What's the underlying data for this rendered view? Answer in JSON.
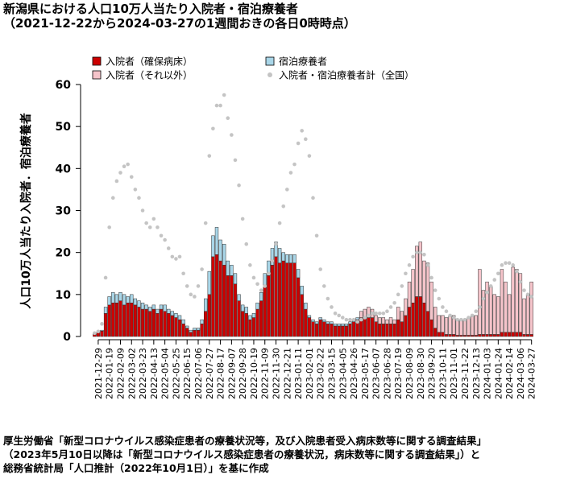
{
  "chart_data": {
    "type": "bar",
    "stacked": true,
    "title": [
      "新潟県における人口10万人当たり入院者・宿泊療養者",
      "（2021-12-22から2024-03-27の1週間おきの各日0時時点）"
    ],
    "ylabel": "人口10万人当たり入院者．宿泊療養者",
    "notes": [
      "厚生労働省「新型コロナウイルス感染症患者の療養状況等，及び入院患者受入病床数等に関する調査結果」",
      "（2023年5月10日以降は「新型コロナウイルス感染症患者の療養状況，病床数等に関する調査結果」）と",
      "総務省統計局「人口推計（2022年10月1日）」を基に作成"
    ],
    "categories": [
      null,
      "2021-12-29",
      null,
      null,
      "2022-01-19",
      null,
      null,
      "2022-02-09",
      null,
      null,
      "2022-03-02",
      null,
      null,
      "2022-03-23",
      null,
      null,
      "2022-04-13",
      null,
      null,
      "2022-05-04",
      null,
      null,
      "2022-05-25",
      null,
      null,
      "2022-06-15",
      null,
      null,
      "2022-07-06",
      null,
      null,
      "2022-07-27",
      null,
      null,
      "2022-08-17",
      null,
      null,
      "2022-09-07",
      null,
      null,
      "2022-09-28",
      null,
      null,
      "2022-10-19",
      null,
      null,
      "2022-11-09",
      null,
      null,
      "2022-11-30",
      null,
      null,
      "2022-12-21",
      null,
      null,
      "2023-01-11",
      null,
      null,
      "2023-02-01",
      null,
      null,
      "2023-02-22",
      null,
      null,
      "2023-03-15",
      null,
      null,
      "2023-04-05",
      null,
      null,
      "2023-04-26",
      null,
      null,
      "2023-05-17",
      null,
      null,
      "2023-06-07",
      null,
      null,
      "2023-06-28",
      null,
      null,
      "2023-07-19",
      null,
      null,
      "2023-08-09",
      null,
      null,
      "2023-08-30",
      null,
      null,
      "2023-09-20",
      null,
      null,
      "2023-10-11",
      null,
      null,
      "2023-11-01",
      null,
      null,
      "2023-11-22",
      null,
      null,
      "2023-12-13",
      null,
      null,
      "2024-01-03",
      null,
      null,
      "2024-01-24",
      null,
      null,
      "2024-02-14",
      null,
      null,
      "2024-03-06",
      null,
      null,
      "2024-03-27"
    ],
    "series": [
      {
        "name": "入院者（確保病床）",
        "color": "#cc0000",
        "type": "bar",
        "values": [
          0.8,
          1,
          1.3,
          5.5,
          7.5,
          8,
          8,
          8.5,
          7.5,
          8,
          8,
          7.5,
          7,
          6.5,
          6.5,
          6,
          6.5,
          5.5,
          6.5,
          6,
          5.5,
          5,
          4.5,
          4,
          3,
          2,
          1,
          1.5,
          1.5,
          3,
          6,
          10,
          19,
          19.5,
          18,
          17,
          14.5,
          14.5,
          12.5,
          8.5,
          6,
          5.5,
          4,
          4.5,
          6.5,
          8.5,
          12,
          14.5,
          17,
          19,
          17.5,
          18,
          17.5,
          17.5,
          17.5,
          14,
          10,
          6.5,
          4.5,
          3.5,
          3,
          4,
          3.5,
          3,
          3,
          2.5,
          2.5,
          2.5,
          2.5,
          3,
          3.5,
          4,
          4.5,
          4.5,
          4.5,
          4.5,
          3.5,
          3,
          3,
          3,
          3,
          3,
          4,
          3.5,
          5,
          7,
          8,
          9.5,
          9.5,
          8,
          6,
          4,
          2,
          1,
          1,
          0.5,
          0.5,
          0.5,
          0.3,
          0.3,
          0.3,
          0.3,
          0.3,
          0.3,
          0.5,
          0.5,
          0.5,
          0.5,
          0.5,
          0.5,
          1,
          1,
          1,
          1,
          1,
          1,
          0.5,
          0.5,
          0.5
        ]
      },
      {
        "name": "入院者（それ以外）",
        "color": "#f5c4ca",
        "type": "bar",
        "values": [
          0,
          0,
          0,
          0,
          0,
          0,
          0,
          0,
          0,
          0,
          0,
          0,
          0,
          0,
          0,
          0,
          0,
          0,
          0,
          0,
          0,
          0,
          0,
          0,
          0,
          0,
          0,
          0,
          0,
          0,
          0,
          0,
          0,
          0,
          0,
          0,
          0,
          0,
          0,
          0,
          0,
          0,
          0,
          0,
          0,
          0,
          0,
          0,
          0,
          0,
          0,
          0,
          0,
          0,
          0,
          0,
          0,
          0,
          0,
          0,
          0,
          0,
          0,
          0,
          0,
          0,
          0,
          0,
          0,
          0,
          0,
          0,
          1.5,
          2,
          2.5,
          2,
          1.5,
          1.5,
          1.5,
          1,
          1.5,
          1,
          3,
          2.5,
          4,
          6,
          8,
          12,
          13,
          10,
          11.5,
          9,
          5,
          4,
          4,
          4,
          4.5,
          4.5,
          3.7,
          3.7,
          3.7,
          4.2,
          4.7,
          4.7,
          15.5,
          10.5,
          12.5,
          11.5,
          9.5,
          9,
          15,
          12,
          9,
          15.5,
          15,
          14,
          8.5,
          9.5,
          12.5
        ]
      },
      {
        "name": "宿泊療養者",
        "color": "#a9d6e8",
        "type": "bar",
        "values": [
          0,
          0,
          0.2,
          1.5,
          2,
          2.5,
          2,
          2,
          2.5,
          1.5,
          2,
          1.5,
          1.5,
          1.5,
          1,
          1,
          1,
          1,
          1,
          1.5,
          1,
          1,
          1,
          1,
          1,
          0.5,
          0.5,
          0.5,
          0.5,
          1,
          3,
          5.5,
          5,
          6.5,
          5,
          5,
          3.5,
          2.5,
          2.5,
          1.5,
          1.5,
          1.5,
          1,
          1,
          1.5,
          2,
          3,
          3.5,
          4,
          3.5,
          3.5,
          2,
          2,
          2,
          2,
          2,
          2,
          1.5,
          0.5,
          0.5,
          0.5,
          0.5,
          0.5,
          0.5,
          0.5,
          0.5,
          0.5,
          0.5,
          0.5,
          0.5,
          0.5,
          0.5,
          0,
          0,
          0,
          0,
          0,
          0,
          0,
          0,
          0,
          0,
          0,
          0,
          0,
          0,
          0,
          0,
          0,
          0,
          0,
          0,
          0,
          0,
          0,
          0,
          0,
          0,
          0,
          0,
          0,
          0,
          0,
          0,
          0,
          0,
          0,
          0,
          0,
          0,
          0,
          0,
          0,
          0,
          0,
          0,
          0,
          0,
          0
        ]
      },
      {
        "name": "入院者・宿泊療養者計（全国）",
        "color": "#c4c4c4",
        "type": "scatter",
        "values": [
          0.8,
          1.2,
          3,
          14,
          26,
          33,
          37,
          39,
          40.5,
          41,
          38,
          35,
          33,
          30,
          27,
          26,
          28,
          26,
          24,
          23,
          21,
          19,
          18.5,
          19,
          15,
          12,
          10,
          9.5,
          12,
          16,
          27,
          43,
          49.5,
          55,
          55,
          57.5,
          52,
          48,
          42,
          36,
          28,
          22,
          17,
          14,
          12.5,
          11,
          12,
          15,
          18,
          22,
          27,
          31,
          35,
          39,
          41,
          46,
          49,
          47,
          43,
          33,
          24,
          16,
          12,
          9,
          7,
          5.5,
          5,
          4.5,
          4,
          4,
          4,
          3.5,
          4,
          4.5,
          5,
          5.5,
          5.5,
          5.5,
          5.5,
          6,
          7,
          8,
          10,
          12,
          15,
          17,
          19,
          20,
          20,
          19.5,
          17,
          14,
          11,
          9,
          7,
          6,
          5,
          4.5,
          4,
          4,
          4,
          4.5,
          5,
          6,
          7,
          9,
          10.5,
          12,
          13.5,
          15,
          17,
          17.5,
          17.5,
          17,
          15.5,
          13,
          11,
          10,
          9.5
        ]
      }
    ],
    "ylim": [
      0,
      60
    ],
    "yticks": [
      0,
      10,
      20,
      30,
      40,
      50,
      60
    ],
    "grid": false
  }
}
